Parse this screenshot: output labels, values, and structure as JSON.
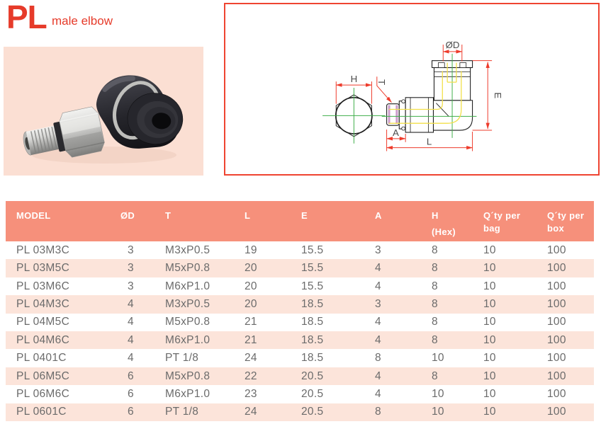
{
  "page": {
    "title": "PL",
    "subtitle": "male elbow"
  },
  "colors": {
    "accent_red": "#e63b2a",
    "diagram_border_red": "#ef4431",
    "table_header_bg": "#f6907b",
    "table_row_alt_bg": "#fce4da",
    "table_text": "#6b6b6b",
    "photo_bg": "#fbdfd3",
    "dimension_red": "#ee3b2b",
    "centerline_green": "#3fae4a",
    "passage_yellow": "#f2df4a",
    "thread_magenta": "#c892c8",
    "diagram_label_gray": "#4b4b4b"
  },
  "diagram": {
    "labels": {
      "h": "H",
      "t": "T",
      "od": "ØD",
      "e": "E",
      "a": "A",
      "l": "L"
    }
  },
  "table": {
    "headers": [
      [
        "MODEL"
      ],
      [
        "ØD"
      ],
      [
        "T"
      ],
      [
        "L"
      ],
      [
        "E"
      ],
      [
        "A"
      ],
      [
        "H",
        "(Hex)"
      ],
      [
        "Q´ty per",
        "bag"
      ],
      [
        "Q´ty per",
        "box"
      ]
    ],
    "rows": [
      [
        "PL 03M3C",
        "3",
        "M3xP0.5",
        "19",
        "15.5",
        "3",
        "8",
        "10",
        "100"
      ],
      [
        "PL 03M5C",
        "3",
        "M5xP0.8",
        "20",
        "15.5",
        "4",
        "8",
        "10",
        "100"
      ],
      [
        "PL 03M6C",
        "3",
        "M6xP1.0",
        "20",
        "15.5",
        "4",
        "8",
        "10",
        "100"
      ],
      [
        "PL 04M3C",
        "4",
        "M3xP0.5",
        "20",
        "18.5",
        "3",
        "8",
        "10",
        "100"
      ],
      [
        "PL 04M5C",
        "4",
        "M5xP0.8",
        "21",
        "18.5",
        "4",
        "8",
        "10",
        "100"
      ],
      [
        "PL 04M6C",
        "4",
        "M6xP1.0",
        "21",
        "18.5",
        "4",
        "8",
        "10",
        "100"
      ],
      [
        "PL 0401C",
        "4",
        "PT 1/8",
        "24",
        "18.5",
        "8",
        "10",
        "10",
        "100"
      ],
      [
        "PL 06M5C",
        "6",
        "M5xP0.8",
        "22",
        "20.5",
        "4",
        "8",
        "10",
        "100"
      ],
      [
        "PL 06M6C",
        "6",
        "M6xP1.0",
        "23",
        "20.5",
        "4",
        "10",
        "10",
        "100"
      ],
      [
        "PL 0601C",
        "6",
        "PT 1/8",
        "24",
        "20.5",
        "8",
        "10",
        "10",
        "100"
      ]
    ]
  }
}
